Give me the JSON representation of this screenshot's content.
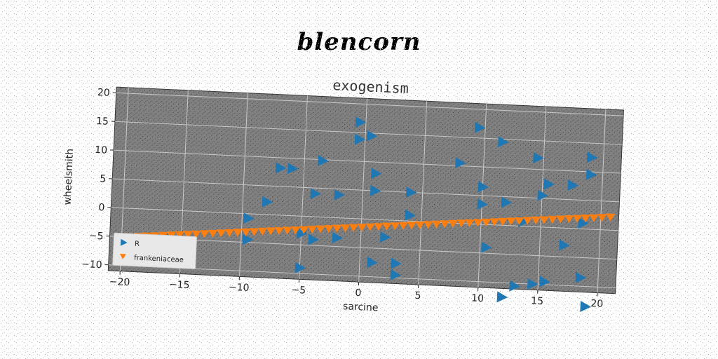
{
  "suptitle": "blencorn",
  "chart_data": {
    "type": "scatter",
    "title": "exogenism",
    "xlabel": "sarcine",
    "ylabel": "wheelsmith",
    "xlim": [
      -21,
      21.5
    ],
    "ylim": [
      -11,
      21
    ],
    "xticks": [
      -20,
      -15,
      -10,
      -5,
      0,
      5,
      10,
      15,
      20
    ],
    "yticks": [
      -10,
      -5,
      0,
      5,
      10,
      15,
      20
    ],
    "grid": true,
    "legend_position": "lower-left",
    "background_color": "#808080",
    "series": [
      {
        "name": "R",
        "marker": "triangle-right",
        "color": "#1f77b4",
        "points": [
          [
            -0.5,
            16.8
          ],
          [
            0.5,
            14.5
          ],
          [
            -0.5,
            13.8
          ],
          [
            9.5,
            16.8
          ],
          [
            11.5,
            14.5
          ],
          [
            19.0,
            12.5
          ],
          [
            -3.5,
            9.8
          ],
          [
            8.0,
            10.5
          ],
          [
            14.5,
            12.0
          ],
          [
            19.0,
            9.5
          ],
          [
            -7.0,
            8.2
          ],
          [
            -6.0,
            8.2
          ],
          [
            1.0,
            8.0
          ],
          [
            10.0,
            6.5
          ],
          [
            15.5,
            7.5
          ],
          [
            17.5,
            7.5
          ],
          [
            -4.0,
            4.0
          ],
          [
            -2.0,
            4.0
          ],
          [
            1.0,
            5.0
          ],
          [
            4.0,
            5.0
          ],
          [
            10.0,
            3.5
          ],
          [
            12.0,
            4.0
          ],
          [
            15.0,
            5.5
          ],
          [
            -8.0,
            2.2
          ],
          [
            4.0,
            1.0
          ],
          [
            13.5,
            0.8
          ],
          [
            18.5,
            1.0
          ],
          [
            -9.5,
            -0.8
          ],
          [
            -5.0,
            -3.0
          ],
          [
            -4.0,
            -4.0
          ],
          [
            -2.0,
            -3.5
          ],
          [
            2.0,
            -3.0
          ],
          [
            10.5,
            -4.0
          ],
          [
            17.0,
            -3.0
          ],
          [
            -9.5,
            -4.5
          ],
          [
            1.0,
            -7.5
          ],
          [
            3.0,
            -7.5
          ],
          [
            3.0,
            -9.5
          ],
          [
            -5.0,
            -9.0
          ],
          [
            15.5,
            -9.5
          ],
          [
            18.5,
            -8.5
          ],
          [
            13.0,
            -10.5
          ],
          [
            12.0,
            -12.5
          ],
          [
            19.0,
            -13.5
          ],
          [
            14.5,
            -10.0
          ]
        ]
      },
      {
        "name": "frankeniaceae",
        "marker": "triangle-down",
        "color": "#ff7f0e",
        "line": {
          "x0": -20,
          "x1": 20.8,
          "count": 60,
          "intercept": -1.5,
          "slope": 0.18
        }
      }
    ]
  }
}
